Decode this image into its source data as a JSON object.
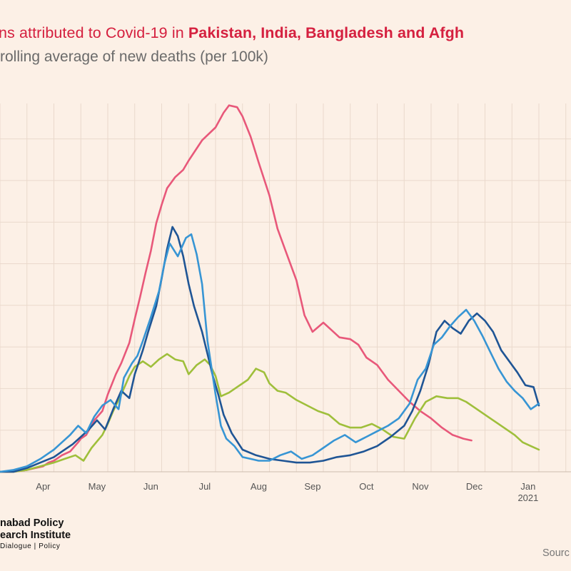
{
  "header": {
    "title_prefix": "ns attributed to Covid-19 in ",
    "title_countries": "Pakistan, India, Bangladesh and Afgh",
    "subtitle": "rolling average of new deaths (per 100k)"
  },
  "branding": {
    "line1": "nabad Policy",
    "line2": "earch Institute",
    "line3": "Dialogue | Policy"
  },
  "footer": {
    "source": "Sourc"
  },
  "colors": {
    "background": "#fcf0e6",
    "grid": "#ead9cc",
    "pink": "#e8587a",
    "green": "#9fbf3b",
    "dark_blue": "#1f5595",
    "light_blue": "#3795d4",
    "title": "#d5203f"
  },
  "chart_data": {
    "type": "line",
    "x_unit": "month (2020 to early 2021)",
    "x_ticks": [
      "Apr",
      "May",
      "Jun",
      "Jul",
      "Aug",
      "Sep",
      "Oct",
      "Nov",
      "Dec",
      "Jan"
    ],
    "x_year_label": "2021",
    "grid": true,
    "series": [
      {
        "color": "pink",
        "points": [
          [
            0.0,
            0.0
          ],
          [
            0.5,
            0.0
          ],
          [
            1.0,
            0.1
          ],
          [
            1.3,
            0.2
          ],
          [
            1.6,
            0.3
          ],
          [
            1.8,
            0.5
          ],
          [
            2.0,
            0.6
          ],
          [
            2.1,
            0.7
          ],
          [
            2.3,
            0.9
          ],
          [
            2.6,
            1.1
          ],
          [
            2.9,
            1.6
          ],
          [
            3.0,
            1.8
          ],
          [
            3.2,
            2.0
          ],
          [
            3.5,
            2.8
          ],
          [
            3.8,
            3.3
          ],
          [
            4.0,
            4.2
          ],
          [
            4.3,
            5.3
          ],
          [
            4.5,
            5.9
          ],
          [
            4.8,
            7.0
          ],
          [
            5.0,
            8.3
          ],
          [
            5.2,
            9.5
          ],
          [
            5.4,
            10.8
          ],
          [
            5.6,
            12.0
          ],
          [
            5.8,
            13.5
          ],
          [
            6.0,
            14.5
          ],
          [
            6.2,
            15.4
          ],
          [
            6.5,
            16.0
          ],
          [
            6.8,
            16.4
          ],
          [
            7.0,
            16.9
          ],
          [
            7.5,
            18.0
          ],
          [
            8.0,
            18.7
          ],
          [
            8.3,
            19.5
          ],
          [
            8.5,
            19.9
          ],
          [
            8.8,
            19.8
          ],
          [
            9.0,
            19.3
          ],
          [
            9.3,
            18.2
          ],
          [
            9.6,
            16.8
          ],
          [
            10.0,
            15.0
          ],
          [
            10.3,
            13.2
          ],
          [
            10.6,
            12.0
          ],
          [
            11.0,
            10.4
          ],
          [
            11.3,
            8.5
          ],
          [
            11.6,
            7.6
          ],
          [
            12.0,
            8.1
          ],
          [
            12.3,
            7.7
          ],
          [
            12.6,
            7.3
          ],
          [
            13.0,
            7.2
          ],
          [
            13.3,
            6.9
          ],
          [
            13.6,
            6.2
          ],
          [
            14.0,
            5.8
          ],
          [
            14.4,
            5.0
          ],
          [
            14.8,
            4.4
          ],
          [
            15.2,
            3.8
          ],
          [
            15.6,
            3.3
          ],
          [
            16.0,
            2.9
          ],
          [
            16.4,
            2.4
          ],
          [
            16.8,
            2.0
          ],
          [
            17.2,
            1.8
          ],
          [
            17.5,
            1.7
          ]
        ]
      },
      {
        "color": "green",
        "points": [
          [
            0.0,
            0.0
          ],
          [
            0.5,
            0.0
          ],
          [
            1.0,
            0.1
          ],
          [
            1.5,
            0.3
          ],
          [
            2.0,
            0.5
          ],
          [
            2.4,
            0.7
          ],
          [
            2.8,
            0.9
          ],
          [
            3.1,
            0.6
          ],
          [
            3.4,
            1.3
          ],
          [
            3.8,
            2.0
          ],
          [
            4.0,
            2.6
          ],
          [
            4.2,
            3.3
          ],
          [
            4.5,
            4.2
          ],
          [
            4.8,
            5.2
          ],
          [
            5.0,
            5.7
          ],
          [
            5.3,
            6.0
          ],
          [
            5.6,
            5.7
          ],
          [
            5.9,
            6.1
          ],
          [
            6.2,
            6.4
          ],
          [
            6.5,
            6.1
          ],
          [
            6.8,
            6.0
          ],
          [
            7.0,
            5.3
          ],
          [
            7.3,
            5.8
          ],
          [
            7.6,
            6.1
          ],
          [
            7.8,
            5.8
          ],
          [
            8.0,
            5.2
          ],
          [
            8.2,
            4.1
          ],
          [
            8.5,
            4.3
          ],
          [
            8.8,
            4.6
          ],
          [
            9.2,
            5.0
          ],
          [
            9.5,
            5.6
          ],
          [
            9.8,
            5.4
          ],
          [
            10.0,
            4.8
          ],
          [
            10.3,
            4.4
          ],
          [
            10.6,
            4.3
          ],
          [
            11.0,
            3.9
          ],
          [
            11.4,
            3.6
          ],
          [
            11.8,
            3.3
          ],
          [
            12.2,
            3.1
          ],
          [
            12.6,
            2.6
          ],
          [
            13.0,
            2.4
          ],
          [
            13.4,
            2.4
          ],
          [
            13.8,
            2.6
          ],
          [
            14.2,
            2.3
          ],
          [
            14.6,
            1.9
          ],
          [
            15.0,
            1.8
          ],
          [
            15.4,
            2.9
          ],
          [
            15.8,
            3.8
          ],
          [
            16.2,
            4.1
          ],
          [
            16.6,
            4.0
          ],
          [
            17.0,
            4.0
          ],
          [
            17.3,
            3.8
          ],
          [
            17.6,
            3.5
          ],
          [
            17.9,
            3.2
          ],
          [
            18.2,
            2.9
          ],
          [
            18.5,
            2.6
          ],
          [
            18.8,
            2.3
          ],
          [
            19.1,
            2.0
          ],
          [
            19.4,
            1.6
          ],
          [
            19.7,
            1.4
          ],
          [
            20.0,
            1.2
          ]
        ]
      },
      {
        "color": "dark_blue",
        "points": [
          [
            0.0,
            0.0
          ],
          [
            0.5,
            0.0
          ],
          [
            1.0,
            0.2
          ],
          [
            1.5,
            0.5
          ],
          [
            2.0,
            0.8
          ],
          [
            2.3,
            1.1
          ],
          [
            2.7,
            1.5
          ],
          [
            3.0,
            1.9
          ],
          [
            3.3,
            2.3
          ],
          [
            3.6,
            2.8
          ],
          [
            3.9,
            2.3
          ],
          [
            4.2,
            3.4
          ],
          [
            4.5,
            4.4
          ],
          [
            4.8,
            4.0
          ],
          [
            5.0,
            5.3
          ],
          [
            5.3,
            6.6
          ],
          [
            5.5,
            7.6
          ],
          [
            5.8,
            9.0
          ],
          [
            6.0,
            10.5
          ],
          [
            6.2,
            12.1
          ],
          [
            6.4,
            13.3
          ],
          [
            6.6,
            12.8
          ],
          [
            6.8,
            11.7
          ],
          [
            7.0,
            10.2
          ],
          [
            7.2,
            9.0
          ],
          [
            7.5,
            7.6
          ],
          [
            7.7,
            6.4
          ],
          [
            7.9,
            5.2
          ],
          [
            8.1,
            4.2
          ],
          [
            8.3,
            3.1
          ],
          [
            8.6,
            2.1
          ],
          [
            9.0,
            1.2
          ],
          [
            9.5,
            0.9
          ],
          [
            10.0,
            0.7
          ],
          [
            10.5,
            0.6
          ],
          [
            11.0,
            0.5
          ],
          [
            11.5,
            0.5
          ],
          [
            12.0,
            0.6
          ],
          [
            12.5,
            0.8
          ],
          [
            13.0,
            0.9
          ],
          [
            13.5,
            1.1
          ],
          [
            14.0,
            1.4
          ],
          [
            14.5,
            1.9
          ],
          [
            15.0,
            2.5
          ],
          [
            15.3,
            3.3
          ],
          [
            15.6,
            4.4
          ],
          [
            15.9,
            5.8
          ],
          [
            16.2,
            7.6
          ],
          [
            16.5,
            8.2
          ],
          [
            16.8,
            7.8
          ],
          [
            17.1,
            7.5
          ],
          [
            17.4,
            8.2
          ],
          [
            17.7,
            8.6
          ],
          [
            18.0,
            8.2
          ],
          [
            18.3,
            7.6
          ],
          [
            18.6,
            6.6
          ],
          [
            18.9,
            6.0
          ],
          [
            19.2,
            5.4
          ],
          [
            19.5,
            4.7
          ],
          [
            19.8,
            4.6
          ],
          [
            20.0,
            3.6
          ]
        ]
      },
      {
        "color": "light_blue",
        "points": [
          [
            0.0,
            0.0
          ],
          [
            0.5,
            0.1
          ],
          [
            1.0,
            0.3
          ],
          [
            1.5,
            0.7
          ],
          [
            2.0,
            1.2
          ],
          [
            2.3,
            1.6
          ],
          [
            2.6,
            2.0
          ],
          [
            2.9,
            2.5
          ],
          [
            3.2,
            2.1
          ],
          [
            3.5,
            3.0
          ],
          [
            3.8,
            3.6
          ],
          [
            4.1,
            3.9
          ],
          [
            4.4,
            3.4
          ],
          [
            4.6,
            5.1
          ],
          [
            4.9,
            5.9
          ],
          [
            5.1,
            6.3
          ],
          [
            5.3,
            7.1
          ],
          [
            5.6,
            8.4
          ],
          [
            5.9,
            9.8
          ],
          [
            6.1,
            11.3
          ],
          [
            6.3,
            12.4
          ],
          [
            6.6,
            11.7
          ],
          [
            6.9,
            12.7
          ],
          [
            7.1,
            12.9
          ],
          [
            7.3,
            11.8
          ],
          [
            7.5,
            10.2
          ],
          [
            7.7,
            7.1
          ],
          [
            8.0,
            4.2
          ],
          [
            8.2,
            2.5
          ],
          [
            8.4,
            1.8
          ],
          [
            8.7,
            1.4
          ],
          [
            9.0,
            0.8
          ],
          [
            9.3,
            0.7
          ],
          [
            9.6,
            0.6
          ],
          [
            10.0,
            0.6
          ],
          [
            10.4,
            0.9
          ],
          [
            10.8,
            1.1
          ],
          [
            11.2,
            0.7
          ],
          [
            11.6,
            0.9
          ],
          [
            12.0,
            1.3
          ],
          [
            12.4,
            1.7
          ],
          [
            12.8,
            2.0
          ],
          [
            13.2,
            1.6
          ],
          [
            13.6,
            1.9
          ],
          [
            14.0,
            2.2
          ],
          [
            14.4,
            2.5
          ],
          [
            14.8,
            2.9
          ],
          [
            15.2,
            3.7
          ],
          [
            15.5,
            5.0
          ],
          [
            15.8,
            5.6
          ],
          [
            16.1,
            6.9
          ],
          [
            16.4,
            7.3
          ],
          [
            16.7,
            7.9
          ],
          [
            17.0,
            8.4
          ],
          [
            17.3,
            8.8
          ],
          [
            17.6,
            8.2
          ],
          [
            17.9,
            7.4
          ],
          [
            18.2,
            6.5
          ],
          [
            18.5,
            5.6
          ],
          [
            18.8,
            4.9
          ],
          [
            19.1,
            4.4
          ],
          [
            19.4,
            4.0
          ],
          [
            19.7,
            3.4
          ],
          [
            20.0,
            3.7
          ]
        ]
      }
    ]
  }
}
